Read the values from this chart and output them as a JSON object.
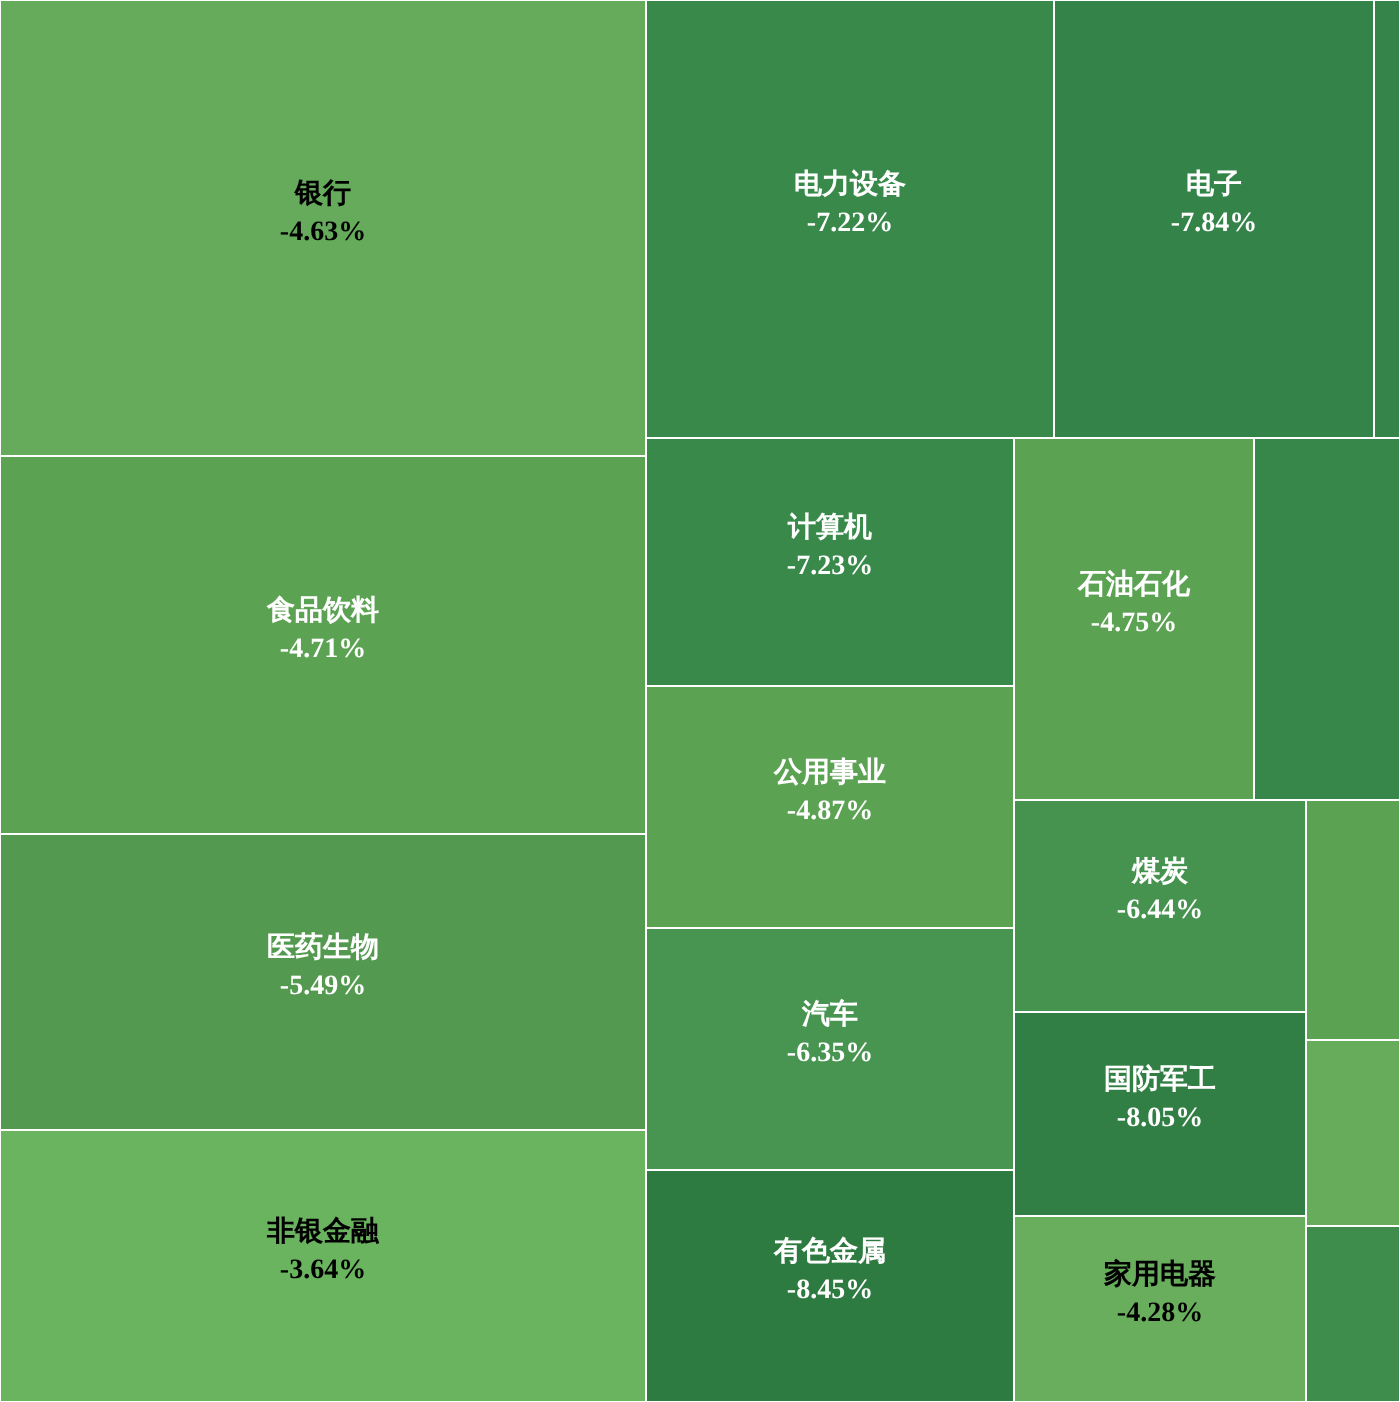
{
  "chart_data": {
    "type": "other",
    "categories": [
      "银行",
      "食品饮料",
      "医药生物",
      "非银金融",
      "电力设备",
      "电子",
      null,
      "计算机",
      "公用事业",
      "汽车",
      "有色金属",
      "石油石化",
      null,
      "煤炭",
      "国防军工",
      "家用电器",
      null,
      null,
      null
    ],
    "values": [
      -4.63,
      -4.71,
      -5.49,
      -3.64,
      -7.22,
      -7.84,
      null,
      -7.23,
      -4.87,
      -6.35,
      -8.45,
      -4.75,
      null,
      -6.44,
      -8.05,
      -4.28,
      null,
      null,
      null
    ],
    "value_labels": [
      "-4.63%",
      "-4.71%",
      "-5.49%",
      "-3.64%",
      "-7.22%",
      "-7.84%",
      null,
      "-7.23%",
      "-4.87%",
      "-6.35%",
      "-8.45%",
      "-4.75%",
      null,
      "-6.44%",
      "-8.05%",
      "-4.28%",
      null,
      null,
      null
    ],
    "colors": [
      "#65ab5b",
      "#5ca253",
      "#53994f",
      "#6ab35f",
      "#38894a",
      "#34844a",
      "#35854a",
      "#38894a",
      "#5ca253",
      "#479550",
      "#2e7b41",
      "#5ca253",
      "#37874a",
      "#46934f",
      "#317f44",
      "#68ae5c",
      "#5ca253",
      "#66ac5b",
      "#3e8d4c"
    ]
  }
}
